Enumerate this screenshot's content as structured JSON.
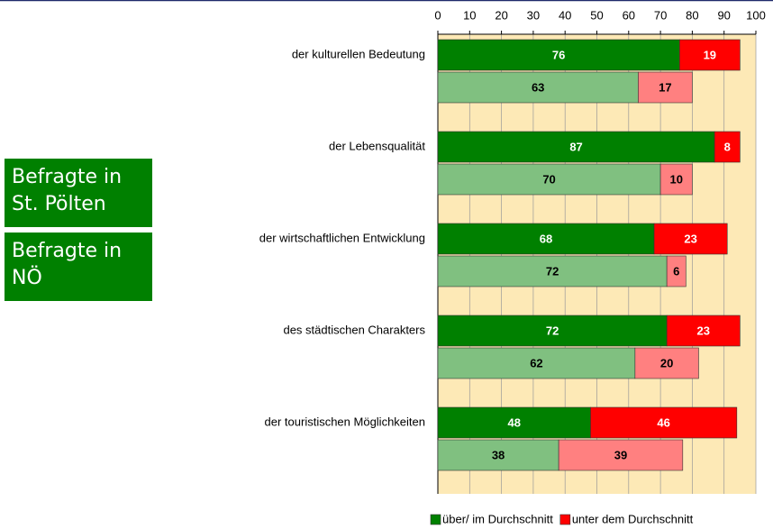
{
  "chart_data": {
    "type": "bar",
    "orientation": "horizontal",
    "stacked": true,
    "categories": [
      "der kulturellen Bedeutung",
      "der Lebensqualität",
      "der wirtschaftlichen Entwicklung",
      "des städtischen Charakters",
      "der touristischen Möglichkeiten"
    ],
    "groups": [
      {
        "label": "Befragte in St. Pölten",
        "color": "#008000",
        "series": [
          {
            "name": "über/ im Durchschnitt",
            "color": "#008000",
            "label_color": "#ffffff",
            "values": [
              76,
              87,
              68,
              72,
              48
            ]
          },
          {
            "name": "unter dem Durchschnitt",
            "color": "#ff0000",
            "label_color": "#ffffff",
            "values": [
              19,
              8,
              23,
              23,
              46
            ]
          }
        ]
      },
      {
        "label": "Befragte in NÖ",
        "color": "#008000",
        "series": [
          {
            "color": "#80c080",
            "label_color": "#000000",
            "values": [
              63,
              70,
              72,
              62,
              38
            ]
          },
          {
            "color": "#ff8080",
            "label_color": "#000000",
            "values": [
              17,
              10,
              6,
              20,
              39
            ]
          }
        ]
      }
    ],
    "xlim": [
      0,
      100
    ],
    "xticks": [
      0,
      10,
      20,
      30,
      40,
      50,
      60,
      70,
      80,
      90,
      100
    ],
    "grid": true,
    "background": "#fde9b6",
    "legend": "bottom"
  }
}
